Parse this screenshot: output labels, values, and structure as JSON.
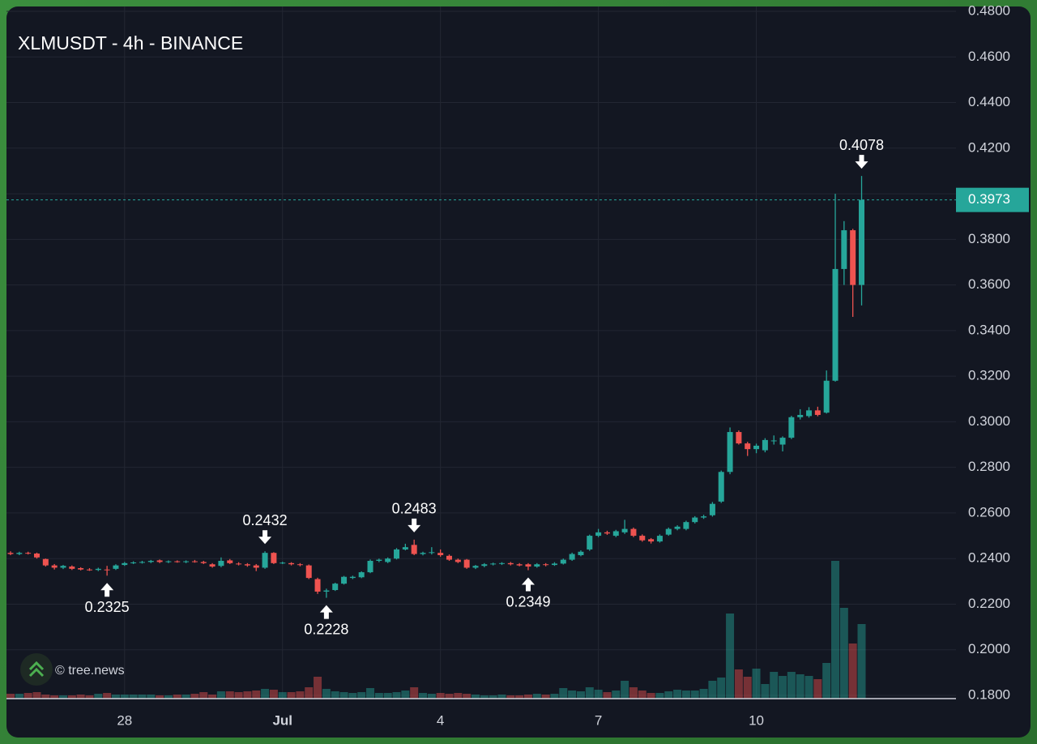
{
  "chart_data": {
    "type": "candlestick",
    "title": "XLMUSDT - 4h - BINANCE",
    "watermark": "© tree.news",
    "up_color": "#26a69a",
    "down_color": "#ef5350",
    "grid": true,
    "open": [
      0.2425,
      0.242,
      0.2425,
      0.2422,
      0.2398,
      0.237,
      0.236,
      0.2365,
      0.2358,
      0.2352,
      0.235,
      0.2352,
      0.2355,
      0.2372,
      0.238,
      0.2382,
      0.2385,
      0.2392,
      0.2385,
      0.2388,
      0.2386,
      0.2388,
      0.2385,
      0.2375,
      0.2368,
      0.2392,
      0.2378,
      0.2375,
      0.237,
      0.236,
      0.2425,
      0.238,
      0.238,
      0.2375,
      0.237,
      0.231,
      0.2255,
      0.2262,
      0.229,
      0.2315,
      0.2318,
      0.234,
      0.239,
      0.2385,
      0.24,
      0.244,
      0.246,
      0.242,
      0.2425,
      0.2425,
      0.2412,
      0.2395,
      0.2395,
      0.236,
      0.2368,
      0.2375,
      0.2378,
      0.238,
      0.2375,
      0.2375,
      0.2365,
      0.2375,
      0.2372,
      0.2378,
      0.2395,
      0.2415,
      0.244,
      0.25,
      0.2515,
      0.25,
      0.2515,
      0.253,
      0.25,
      0.2485,
      0.2475,
      0.2505,
      0.253,
      0.253,
      0.256,
      0.258,
      0.259,
      0.265,
      0.278,
      0.2955,
      0.2905,
      0.288,
      0.2875,
      0.2915,
      0.29,
      0.293,
      0.302,
      0.3025,
      0.305,
      0.304,
      0.318,
      0.367,
      0.384,
      0.36
    ],
    "high": [
      0.2432,
      0.243,
      0.243,
      0.2426,
      0.24,
      0.2376,
      0.2372,
      0.237,
      0.2362,
      0.2358,
      0.236,
      0.2368,
      0.2375,
      0.2385,
      0.2388,
      0.239,
      0.2394,
      0.2396,
      0.2392,
      0.2392,
      0.2392,
      0.2394,
      0.239,
      0.238,
      0.2405,
      0.2398,
      0.2384,
      0.238,
      0.2376,
      0.2432,
      0.2428,
      0.2386,
      0.2384,
      0.238,
      0.2374,
      0.2316,
      0.2268,
      0.2294,
      0.2324,
      0.2325,
      0.2344,
      0.2396,
      0.24,
      0.2405,
      0.2446,
      0.2465,
      0.2483,
      0.243,
      0.245,
      0.244,
      0.2418,
      0.24,
      0.2398,
      0.2372,
      0.238,
      0.2382,
      0.2384,
      0.2385,
      0.238,
      0.238,
      0.238,
      0.238,
      0.2384,
      0.24,
      0.2426,
      0.2436,
      0.2505,
      0.253,
      0.2522,
      0.2526,
      0.257,
      0.2536,
      0.2506,
      0.249,
      0.2506,
      0.2536,
      0.2546,
      0.2566,
      0.2586,
      0.2592,
      0.2648,
      0.2786,
      0.2975,
      0.2962,
      0.2912,
      0.2904,
      0.2928,
      0.294,
      0.2936,
      0.3026,
      0.3055,
      0.3064,
      0.3066,
      0.3225,
      0.4,
      0.388,
      0.3846,
      0.4078
    ],
    "low": [
      0.2415,
      0.2415,
      0.2418,
      0.24,
      0.2365,
      0.2352,
      0.2354,
      0.235,
      0.2348,
      0.2346,
      0.2345,
      0.2325,
      0.235,
      0.2368,
      0.2376,
      0.2378,
      0.238,
      0.238,
      0.238,
      0.2382,
      0.238,
      0.2382,
      0.2376,
      0.236,
      0.2362,
      0.2376,
      0.237,
      0.2364,
      0.2345,
      0.2355,
      0.2376,
      0.2376,
      0.237,
      0.2366,
      0.231,
      0.2245,
      0.2228,
      0.2258,
      0.2286,
      0.231,
      0.2314,
      0.2336,
      0.2384,
      0.238,
      0.2396,
      0.2436,
      0.2415,
      0.2414,
      0.2418,
      0.2408,
      0.239,
      0.238,
      0.2355,
      0.2354,
      0.2362,
      0.237,
      0.2372,
      0.237,
      0.2366,
      0.2349,
      0.236,
      0.2366,
      0.2368,
      0.2374,
      0.239,
      0.241,
      0.2434,
      0.2494,
      0.2504,
      0.2494,
      0.2508,
      0.2494,
      0.2474,
      0.2466,
      0.247,
      0.25,
      0.2524,
      0.2524,
      0.2554,
      0.2574,
      0.2584,
      0.2644,
      0.277,
      0.29,
      0.285,
      0.2862,
      0.2866,
      0.29,
      0.287,
      0.2924,
      0.301,
      0.3018,
      0.3024,
      0.3036,
      0.3176,
      0.36,
      0.346,
      0.351
    ],
    "close": [
      0.242,
      0.2425,
      0.2422,
      0.2405,
      0.237,
      0.236,
      0.2368,
      0.2355,
      0.2352,
      0.235,
      0.2355,
      0.235,
      0.237,
      0.238,
      0.2383,
      0.2385,
      0.239,
      0.2385,
      0.2388,
      0.2386,
      0.2388,
      0.2385,
      0.238,
      0.2365,
      0.239,
      0.238,
      0.2375,
      0.237,
      0.236,
      0.2425,
      0.238,
      0.2382,
      0.2375,
      0.2372,
      0.2315,
      0.2255,
      0.226,
      0.229,
      0.232,
      0.232,
      0.234,
      0.239,
      0.2395,
      0.24,
      0.244,
      0.245,
      0.242,
      0.2425,
      0.2428,
      0.2415,
      0.2395,
      0.2385,
      0.236,
      0.2368,
      0.2375,
      0.2378,
      0.238,
      0.2375,
      0.237,
      0.2365,
      0.2375,
      0.2372,
      0.2378,
      0.2395,
      0.242,
      0.243,
      0.25,
      0.2515,
      0.251,
      0.252,
      0.253,
      0.25,
      0.248,
      0.2475,
      0.25,
      0.253,
      0.254,
      0.256,
      0.258,
      0.2585,
      0.264,
      0.278,
      0.2955,
      0.2905,
      0.288,
      0.2895,
      0.292,
      0.2918,
      0.293,
      0.302,
      0.303,
      0.305,
      0.303,
      0.318,
      0.367,
      0.384,
      0.36,
      0.3973
    ],
    "volume": [
      6,
      6,
      7,
      8,
      5,
      4,
      4,
      4,
      5,
      4,
      6,
      7,
      5,
      5,
      5,
      5,
      5,
      4,
      4,
      5,
      5,
      6,
      8,
      5,
      9,
      9,
      8,
      9,
      10,
      12,
      11,
      8,
      8,
      9,
      14,
      27,
      12,
      9,
      8,
      7,
      8,
      13,
      7,
      7,
      8,
      10,
      14,
      7,
      6,
      7,
      6,
      7,
      6,
      5,
      4,
      4,
      5,
      4,
      4,
      5,
      6,
      5,
      6,
      13,
      10,
      9,
      14,
      11,
      8,
      10,
      22,
      14,
      10,
      7,
      7,
      9,
      11,
      10,
      10,
      12,
      22,
      26,
      105,
      36,
      27,
      37,
      18,
      33,
      28,
      33,
      30,
      28,
      24,
      44,
      170,
      112,
      68,
      92
    ],
    "ylim": [
      0.18,
      0.48
    ],
    "yticks": [
      {
        "value": 0.18,
        "label": "0.1800"
      },
      {
        "value": 0.2,
        "label": "0.2000"
      },
      {
        "value": 0.22,
        "label": "0.2200"
      },
      {
        "value": 0.24,
        "label": "0.2400"
      },
      {
        "value": 0.26,
        "label": "0.2600"
      },
      {
        "value": 0.28,
        "label": "0.2800"
      },
      {
        "value": 0.3,
        "label": "0.3000"
      },
      {
        "value": 0.32,
        "label": "0.3200"
      },
      {
        "value": 0.34,
        "label": "0.3400"
      },
      {
        "value": 0.36,
        "label": "0.3600"
      },
      {
        "value": 0.38,
        "label": "0.3800"
      },
      {
        "value": 0.4,
        "label": "0.4000"
      },
      {
        "value": 0.42,
        "label": "0.4200"
      },
      {
        "value": 0.44,
        "label": "0.4400"
      },
      {
        "value": 0.46,
        "label": "0.4600"
      },
      {
        "value": 0.48,
        "label": "0.4800"
      }
    ],
    "xticks": [
      {
        "value": 13,
        "label": "28"
      },
      {
        "value": 31,
        "label": "Jul"
      },
      {
        "value": 49,
        "label": "4"
      },
      {
        "value": 67,
        "label": "7"
      },
      {
        "value": 85,
        "label": "10"
      }
    ],
    "last_price": 0.3973,
    "annotations": [
      {
        "text": "0.2325",
        "at": 11,
        "side": "below"
      },
      {
        "text": "0.2432",
        "at": 29,
        "side": "above"
      },
      {
        "text": "0.2228",
        "at": 36,
        "side": "below"
      },
      {
        "text": "0.2483",
        "at": 46,
        "side": "above"
      },
      {
        "text": "0.2349",
        "at": 59,
        "side": "below"
      },
      {
        "text": "0.4078",
        "at": 97,
        "side": "above"
      }
    ]
  }
}
